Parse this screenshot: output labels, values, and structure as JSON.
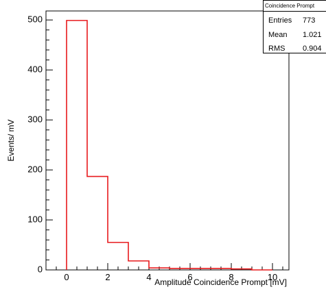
{
  "chart_data": {
    "type": "histogram",
    "title": "",
    "xlabel": "Amplitude Coincidence Prompt [mV]",
    "ylabel": "Events/ mV",
    "xlim": [
      -1,
      10.8
    ],
    "ylim": [
      0,
      518
    ],
    "x_ticks": [
      0,
      2,
      4,
      6,
      8,
      10
    ],
    "y_ticks": [
      0,
      100,
      200,
      300,
      400,
      500
    ],
    "bin_edges": [
      0,
      1,
      2,
      3,
      4,
      5,
      6,
      7,
      8,
      9,
      10
    ],
    "values": [
      499,
      187,
      55,
      18,
      4,
      3,
      3,
      3,
      2,
      0
    ],
    "line_color": "#e8191c",
    "grid": false,
    "legend": "none"
  },
  "stats_box": {
    "title": "Coincidence Prompt",
    "rows": [
      {
        "label": "Entries",
        "value": "773"
      },
      {
        "label": "Mean",
        "value": "1.021"
      },
      {
        "label": "RMS",
        "value": "0.904"
      }
    ]
  }
}
